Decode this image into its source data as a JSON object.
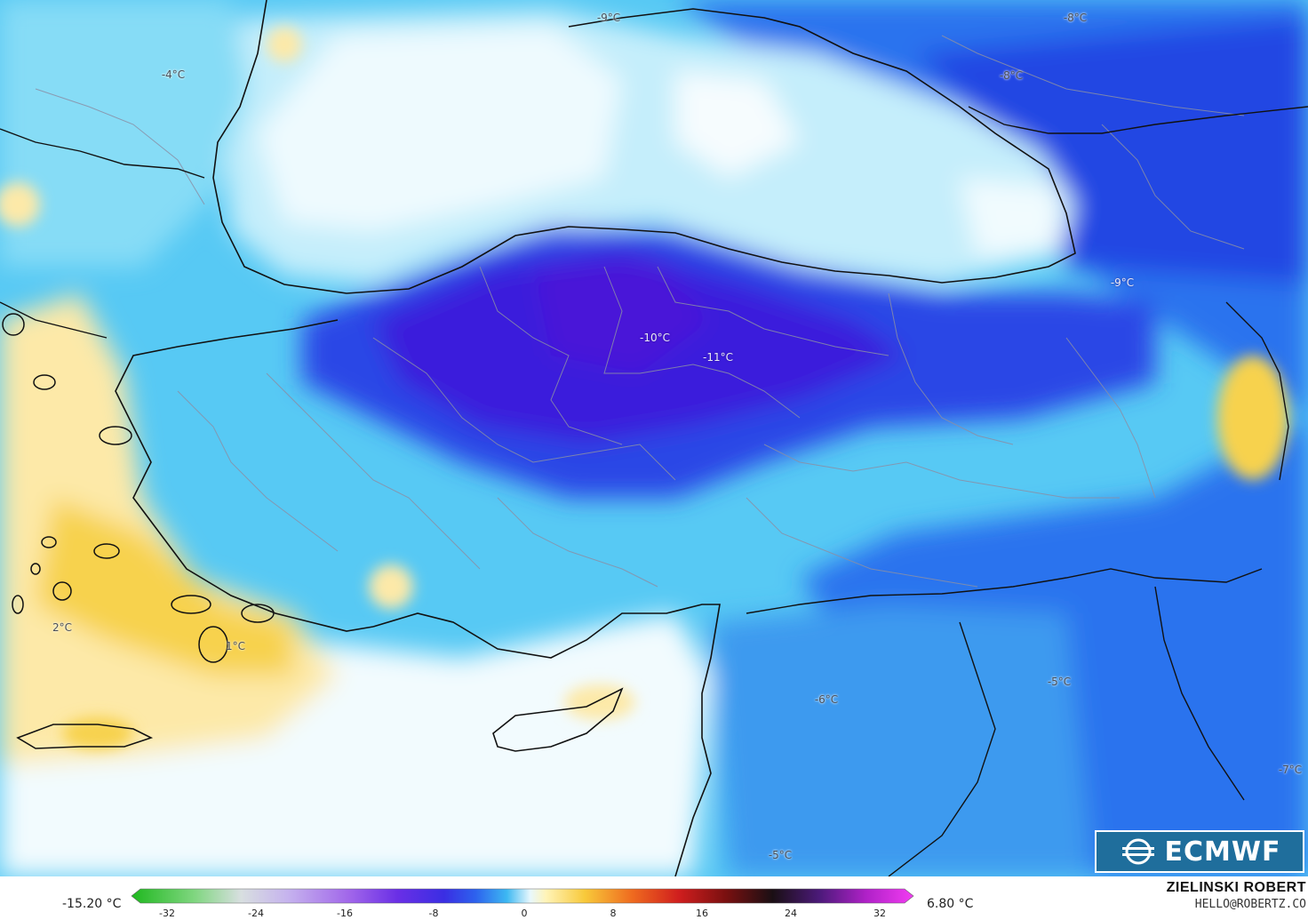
{
  "map": {
    "temperature_labels": [
      {
        "id": "t1",
        "text": "-9°C"
      },
      {
        "id": "t2",
        "text": "-8°C"
      },
      {
        "id": "t3",
        "text": "-4°C"
      },
      {
        "id": "t4",
        "text": "-8°C"
      },
      {
        "id": "t5",
        "text": "-9°C"
      },
      {
        "id": "t6",
        "text": "-10°C"
      },
      {
        "id": "t7",
        "text": "-11°C"
      },
      {
        "id": "t8",
        "text": "2°C"
      },
      {
        "id": "t9",
        "text": "1°C"
      },
      {
        "id": "t10",
        "text": "-6°C"
      },
      {
        "id": "t11",
        "text": "-5°C"
      },
      {
        "id": "t12",
        "text": "-7°C"
      },
      {
        "id": "t13",
        "text": "-5°C"
      }
    ]
  },
  "logo": {
    "text": "ECMWF"
  },
  "legend": {
    "min_label": "-15.20 °C",
    "max_label": "6.80 °C",
    "ticks": [
      "-32",
      "-24",
      "-16",
      "-8",
      "0",
      "8",
      "16",
      "24",
      "32"
    ]
  },
  "credit": {
    "name": "ZIELINSKI ROBERT",
    "email": "HELLO@ROBERTZ.CO"
  },
  "colors": {
    "deep_cold": "#3a1fe0",
    "cold": "#2f6ff0",
    "cool": "#36b7ef",
    "chilly": "#7fdcf7",
    "near_zero": "#d9f5fc",
    "sea_white": "#f2fbfe",
    "warm": "#fde9a8",
    "warmer": "#f7d24e",
    "brand": "#1f6e9c"
  }
}
